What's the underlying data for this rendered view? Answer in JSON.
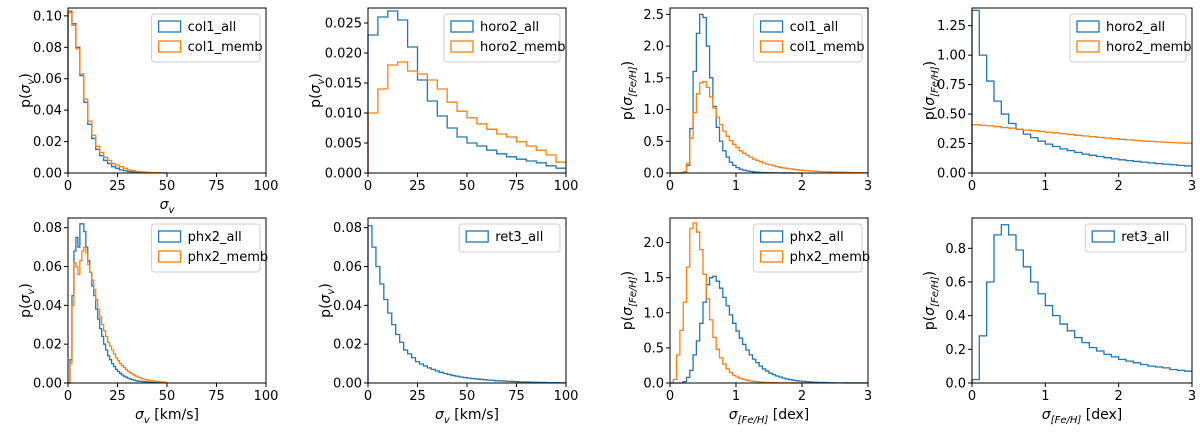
{
  "colors": {
    "series_all": "#1f77b4",
    "series_memb": "#ff7f0e",
    "axis": "#000000"
  },
  "chart_data": [
    {
      "id": "col1-sigv",
      "type": "histogram",
      "legend": "top-right",
      "xlabel": "σ_v",
      "xlabel_unit": "",
      "xlabel_math": "σ",
      "xlabel_sub": "v",
      "ylabel_math": "σ",
      "ylabel_sub": "v",
      "xlim": [
        0,
        100
      ],
      "ylim": [
        0,
        0.105
      ],
      "xticks": [
        0,
        25,
        50,
        75,
        100
      ],
      "xtick_labels": [
        "0",
        "25",
        "50",
        "75",
        "100"
      ],
      "yticks": [
        0,
        0.02,
        0.04,
        0.06,
        0.08,
        0.1
      ],
      "ytick_labels": [
        "0.00",
        "0.02",
        "0.04",
        "0.06",
        "0.08",
        "0.10"
      ],
      "bin_edges_range": [
        0,
        100
      ],
      "bin_width": 2,
      "series": [
        {
          "name": "col1_all",
          "color_key": "series_all",
          "values": [
            0.103,
            0.095,
            0.08,
            0.062,
            0.045,
            0.031,
            0.022,
            0.015,
            0.011,
            0.008,
            0.006,
            0.004,
            0.003,
            0.002,
            0.0015,
            0.001,
            0.0008,
            0.0006,
            0.0004,
            0.0003,
            0.0002,
            0.0001,
            0.0001,
            0.0001,
            0.0001
          ]
        },
        {
          "name": "col1_memb",
          "color_key": "series_memb",
          "values": [
            0.102,
            0.094,
            0.079,
            0.063,
            0.047,
            0.033,
            0.024,
            0.017,
            0.013,
            0.01,
            0.008,
            0.006,
            0.005,
            0.004,
            0.003,
            0.002,
            0.0015,
            0.001,
            0.0008,
            0.0006,
            0.0004,
            0.0003,
            0.0002,
            0.0001,
            0.0001
          ]
        }
      ]
    },
    {
      "id": "horo2-sigv",
      "type": "histogram",
      "legend": "top-right",
      "xlabel": "",
      "xlabel_math": "",
      "xlabel_sub": "",
      "ylabel_math": "σ",
      "ylabel_sub": "v",
      "xlim": [
        0,
        100
      ],
      "ylim": [
        0,
        0.0275
      ],
      "xticks": [
        0,
        25,
        50,
        75,
        100
      ],
      "xtick_labels": [
        "0",
        "25",
        "50",
        "75",
        "100"
      ],
      "yticks": [
        0,
        0.005,
        0.01,
        0.015,
        0.02,
        0.025
      ],
      "ytick_labels": [
        "0.000",
        "0.005",
        "0.010",
        "0.015",
        "0.020",
        "0.025"
      ],
      "bin_width": 5,
      "series": [
        {
          "name": "horo2_all",
          "color_key": "series_all",
          "values": [
            0.023,
            0.026,
            0.027,
            0.0255,
            0.021,
            0.0155,
            0.012,
            0.0095,
            0.0075,
            0.006,
            0.005,
            0.0045,
            0.0038,
            0.0032,
            0.0027,
            0.0023,
            0.002,
            0.0017,
            0.0012,
            0.0008
          ]
        },
        {
          "name": "horo2_memb",
          "color_key": "series_memb",
          "values": [
            0.01,
            0.014,
            0.018,
            0.0185,
            0.017,
            0.0165,
            0.0155,
            0.014,
            0.0118,
            0.0103,
            0.0092,
            0.0082,
            0.0073,
            0.0065,
            0.006,
            0.0052,
            0.0045,
            0.0038,
            0.003,
            0.0018
          ]
        }
      ]
    },
    {
      "id": "col1-sigfeh",
      "type": "histogram",
      "legend": "top-right",
      "xlabel": "",
      "xlabel_math": "",
      "xlabel_sub": "",
      "ylabel_math": "σ",
      "ylabel_sub": "[Fe/H]",
      "xlim": [
        0,
        3
      ],
      "ylim": [
        0,
        2.6
      ],
      "xticks": [
        0,
        1,
        2,
        3
      ],
      "xtick_labels": [
        "0",
        "1",
        "2",
        "3"
      ],
      "yticks": [
        0,
        0.5,
        1.0,
        1.5,
        2.0,
        2.5
      ],
      "ytick_labels": [
        "0.0",
        "0.5",
        "1.0",
        "1.5",
        "2.0",
        "2.5"
      ],
      "bin_width": 0.05,
      "series": [
        {
          "name": "col1_all",
          "color_key": "series_all",
          "values": [
            0,
            0,
            0,
            0,
            0.02,
            0.12,
            0.7,
            1.6,
            2.2,
            2.5,
            2.45,
            2.0,
            1.5,
            1.05,
            0.72,
            0.5,
            0.35,
            0.25,
            0.17,
            0.12,
            0.085,
            0.06,
            0.045,
            0.033,
            0.025,
            0.018,
            0.013,
            0.01,
            0.007,
            0.005,
            0.004,
            0.003,
            0.002,
            0.0015,
            0.001,
            0.001,
            0.001,
            0.0005,
            0.0005,
            0.0005
          ]
        },
        {
          "name": "col1_memb",
          "color_key": "series_memb",
          "values": [
            0,
            0,
            0,
            0,
            0.02,
            0.15,
            0.55,
            0.95,
            1.25,
            1.42,
            1.44,
            1.35,
            1.2,
            1.02,
            0.88,
            0.76,
            0.66,
            0.58,
            0.51,
            0.45,
            0.4,
            0.35,
            0.31,
            0.28,
            0.25,
            0.22,
            0.2,
            0.18,
            0.16,
            0.14,
            0.13,
            0.115,
            0.1,
            0.09,
            0.08,
            0.072,
            0.065,
            0.058,
            0.052,
            0.046,
            0.041,
            0.037,
            0.033,
            0.03,
            0.027,
            0.024,
            0.022,
            0.02,
            0.018,
            0.016,
            0.014,
            0.012,
            0.011,
            0.01,
            0.009,
            0.008,
            0.007,
            0.006,
            0.005,
            0.004
          ]
        }
      ]
    },
    {
      "id": "horo2-sigfeh",
      "type": "histogram",
      "legend": "top-right",
      "xlabel": "",
      "xlabel_math": "",
      "xlabel_sub": "",
      "ylabel_math": "σ",
      "ylabel_sub": "[Fe/H]",
      "xlim": [
        0,
        3
      ],
      "ylim": [
        0,
        1.4
      ],
      "xticks": [
        0,
        1,
        2,
        3
      ],
      "xtick_labels": [
        "0",
        "1",
        "2",
        "3"
      ],
      "yticks": [
        0,
        0.25,
        0.5,
        0.75,
        1.0,
        1.25
      ],
      "ytick_labels": [
        "0.00",
        "0.25",
        "0.50",
        "0.75",
        "1.00",
        "1.25"
      ],
      "bin_width": 0.1,
      "series": [
        {
          "name": "horo2_all",
          "color_key": "series_all",
          "values": [
            1.38,
            1.0,
            0.78,
            0.61,
            0.5,
            0.42,
            0.37,
            0.33,
            0.3,
            0.27,
            0.245,
            0.225,
            0.205,
            0.19,
            0.175,
            0.16,
            0.15,
            0.14,
            0.13,
            0.12,
            0.112,
            0.105,
            0.098,
            0.092,
            0.086,
            0.08,
            0.075,
            0.07,
            0.065,
            0.06
          ]
        },
        {
          "name": "horo2_memb",
          "color_key": "series_memb",
          "values": [
            0.41,
            0.405,
            0.4,
            0.393,
            0.385,
            0.38,
            0.372,
            0.365,
            0.36,
            0.353,
            0.346,
            0.34,
            0.333,
            0.327,
            0.32,
            0.314,
            0.308,
            0.302,
            0.296,
            0.291,
            0.286,
            0.281,
            0.276,
            0.272,
            0.268,
            0.264,
            0.261,
            0.258,
            0.255,
            0.253
          ]
        }
      ]
    },
    {
      "id": "phx2-sigv",
      "type": "histogram",
      "legend": "top-right",
      "xlabel": "σ_v [km/s]",
      "xlabel_math": "σ",
      "xlabel_sub": "v",
      "xlabel_unit": " [km/s]",
      "ylabel_math": "σ",
      "ylabel_sub": "v",
      "xlim": [
        0,
        100
      ],
      "ylim": [
        0,
        0.085
      ],
      "xticks": [
        0,
        25,
        50,
        75,
        100
      ],
      "xtick_labels": [
        "0",
        "25",
        "50",
        "75",
        "100"
      ],
      "yticks": [
        0,
        0.02,
        0.04,
        0.06,
        0.08
      ],
      "ytick_labels": [
        "0.00",
        "0.02",
        "0.04",
        "0.06",
        "0.08"
      ],
      "bin_width": 1,
      "series": [
        {
          "name": "phx2_all",
          "color_key": "series_all",
          "values": [
            0,
            0.012,
            0.045,
            0.068,
            0.075,
            0.07,
            0.082,
            0.082,
            0.078,
            0.07,
            0.063,
            0.057,
            0.05,
            0.045,
            0.038,
            0.033,
            0.028,
            0.024,
            0.02,
            0.017,
            0.014,
            0.012,
            0.01,
            0.0085,
            0.007,
            0.006,
            0.005,
            0.0042,
            0.0035,
            0.003,
            0.0025,
            0.0021,
            0.0018,
            0.0015,
            0.0012,
            0.001,
            0.0009,
            0.0008,
            0.0007,
            0.0006,
            0.0005,
            0.0004,
            0.0004,
            0.0003,
            0.0003,
            0.0002,
            0.0002,
            0.0002,
            0.0001,
            0.0001
          ]
        },
        {
          "name": "phx2_memb",
          "color_key": "series_memb",
          "values": [
            0,
            0.01,
            0.04,
            0.062,
            0.06,
            0.056,
            0.063,
            0.068,
            0.07,
            0.067,
            0.061,
            0.057,
            0.053,
            0.048,
            0.043,
            0.038,
            0.034,
            0.03,
            0.027,
            0.024,
            0.021,
            0.019,
            0.017,
            0.015,
            0.013,
            0.0115,
            0.01,
            0.009,
            0.008,
            0.007,
            0.006,
            0.0053,
            0.0047,
            0.0041,
            0.0036,
            0.0031,
            0.0027,
            0.0023,
            0.002,
            0.0017,
            0.0015,
            0.0013,
            0.0011,
            0.001,
            0.0009,
            0.0008,
            0.0007,
            0.0006,
            0.0005,
            0.0004
          ]
        }
      ]
    },
    {
      "id": "ret3-sigv",
      "type": "histogram",
      "legend": "top-right",
      "xlabel": "σ_v [km/s]",
      "xlabel_math": "σ",
      "xlabel_sub": "v",
      "xlabel_unit": " [km/s]",
      "ylabel_math": "σ",
      "ylabel_sub": "v",
      "xlim": [
        0,
        100
      ],
      "ylim": [
        0,
        0.085
      ],
      "xticks": [
        0,
        25,
        50,
        75,
        100
      ],
      "xtick_labels": [
        "0",
        "25",
        "50",
        "75",
        "100"
      ],
      "yticks": [
        0,
        0.02,
        0.04,
        0.06,
        0.08
      ],
      "ytick_labels": [
        "0.00",
        "0.02",
        "0.04",
        "0.06",
        "0.08"
      ],
      "bin_width": 2,
      "series": [
        {
          "name": "ret3_all",
          "color_key": "series_all",
          "values": [
            0.081,
            0.07,
            0.06,
            0.051,
            0.043,
            0.036,
            0.03,
            0.025,
            0.021,
            0.017,
            0.015,
            0.013,
            0.011,
            0.0098,
            0.0088,
            0.0078,
            0.007,
            0.0062,
            0.0055,
            0.0049,
            0.0044,
            0.0039,
            0.0035,
            0.0031,
            0.0028,
            0.0025,
            0.0023,
            0.0021,
            0.0019,
            0.0017,
            0.0015,
            0.0014,
            0.0012,
            0.0011,
            0.001,
            0.0009,
            0.0008,
            0.0007,
            0.0006,
            0.0005,
            0.0005,
            0.0004,
            0.0004,
            0.0003,
            0.0003,
            0.0002,
            0.0002,
            0.0002,
            0.0001,
            0.0001
          ]
        }
      ]
    },
    {
      "id": "phx2-sigfeh",
      "type": "histogram",
      "legend": "top-right",
      "xlabel": "σ_[Fe/H] [dex]",
      "xlabel_math": "σ",
      "xlabel_sub": "[Fe/H]",
      "xlabel_unit": " [dex]",
      "ylabel_math": "σ",
      "ylabel_sub": "[Fe/H]",
      "xlim": [
        0,
        3
      ],
      "ylim": [
        0,
        2.35
      ],
      "xticks": [
        0,
        1,
        2,
        3
      ],
      "xtick_labels": [
        "0",
        "1",
        "2",
        "3"
      ],
      "yticks": [
        0,
        0.5,
        1.0,
        1.5,
        2.0
      ],
      "ytick_labels": [
        "0.0",
        "0.5",
        "1.0",
        "1.5",
        "2.0"
      ],
      "bin_width": 0.05,
      "series": [
        {
          "name": "phx2_all",
          "color_key": "series_all",
          "values": [
            0,
            0,
            0,
            0,
            0.02,
            0.08,
            0.18,
            0.4,
            0.6,
            0.85,
            1.15,
            1.4,
            1.5,
            1.52,
            1.45,
            1.35,
            1.22,
            1.1,
            0.97,
            0.85,
            0.74,
            0.64,
            0.55,
            0.47,
            0.4,
            0.34,
            0.29,
            0.24,
            0.2,
            0.17,
            0.14,
            0.12,
            0.1,
            0.085,
            0.07,
            0.058,
            0.048,
            0.04,
            0.033,
            0.027,
            0.022,
            0.018,
            0.015,
            0.012,
            0.01,
            0.008,
            0.006,
            0.005,
            0.004,
            0.003,
            0.002,
            0.002,
            0.0015,
            0.001,
            0.001,
            0.001,
            0.0005,
            0.0005,
            0.0005,
            0.0005
          ]
        },
        {
          "name": "phx2_memb",
          "color_key": "series_memb",
          "values": [
            0,
            0.05,
            0.4,
            0.75,
            1.15,
            1.65,
            2.2,
            2.28,
            2.15,
            1.9,
            1.55,
            1.2,
            0.9,
            0.65,
            0.48,
            0.36,
            0.27,
            0.2,
            0.15,
            0.11,
            0.085,
            0.065,
            0.05,
            0.038,
            0.03,
            0.023,
            0.018,
            0.014,
            0.011,
            0.008,
            0.006,
            0.005,
            0.004,
            0.003,
            0.002,
            0.002,
            0.0015,
            0.001,
            0.001,
            0.0005
          ]
        }
      ]
    },
    {
      "id": "ret3-sigfeh",
      "type": "histogram",
      "legend": "top-right",
      "xlabel": "σ_[Fe/H] [dex]",
      "xlabel_math": "σ",
      "xlabel_sub": "[Fe/H]",
      "xlabel_unit": " [dex]",
      "ylabel_math": "σ",
      "ylabel_sub": "[Fe/H]",
      "xlim": [
        0,
        3
      ],
      "ylim": [
        0,
        0.98
      ],
      "xticks": [
        0,
        1,
        2,
        3
      ],
      "xtick_labels": [
        "0",
        "1",
        "2",
        "3"
      ],
      "yticks": [
        0,
        0.2,
        0.4,
        0.6,
        0.8
      ],
      "ytick_labels": [
        "0.0",
        "0.2",
        "0.4",
        "0.6",
        "0.8"
      ],
      "bin_width": 0.1,
      "series": [
        {
          "name": "ret3_all",
          "color_key": "series_all",
          "values": [
            0.02,
            0.28,
            0.6,
            0.88,
            0.94,
            0.88,
            0.79,
            0.69,
            0.6,
            0.53,
            0.46,
            0.4,
            0.35,
            0.31,
            0.27,
            0.24,
            0.21,
            0.19,
            0.17,
            0.155,
            0.14,
            0.13,
            0.12,
            0.11,
            0.1,
            0.095,
            0.09,
            0.08,
            0.075,
            0.07
          ]
        }
      ]
    }
  ]
}
